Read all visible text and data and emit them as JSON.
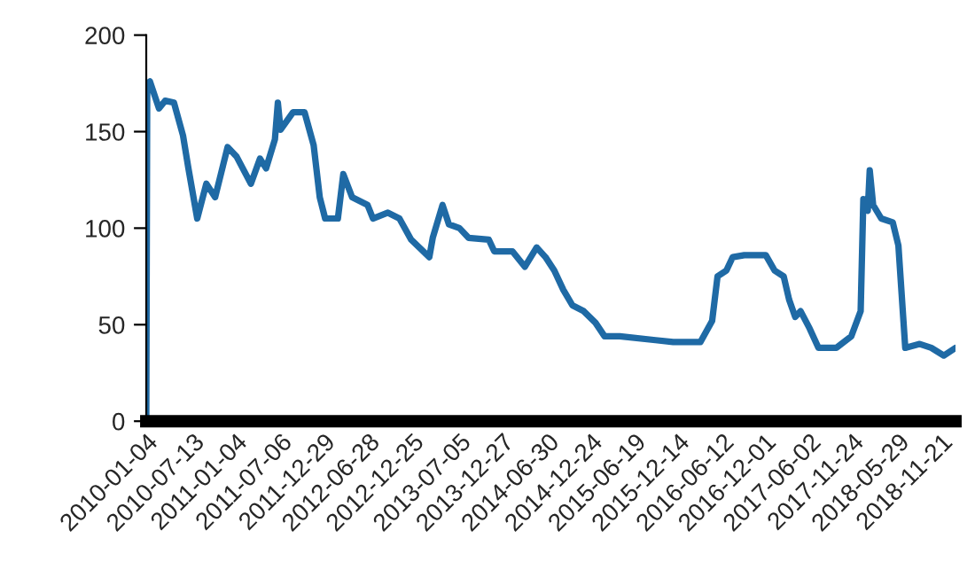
{
  "chart_data": {
    "type": "line",
    "x": [
      "2010-01-04",
      "2010-01-08",
      "2010-01-19",
      "2010-02-25",
      "2010-03-22",
      "2010-04-27",
      "2010-06-03",
      "2010-06-25",
      "2010-07-31",
      "2010-09-06",
      "2010-10-12",
      "2010-12-02",
      "2011-01-08",
      "2011-03-07",
      "2011-04-13",
      "2011-05-08",
      "2011-06-13",
      "2011-06-25",
      "2011-07-06",
      "2011-08-26",
      "2011-10-12",
      "2011-11-18",
      "2011-12-13",
      "2012-01-04",
      "2012-02-25",
      "2012-03-18",
      "2012-04-23",
      "2012-06-25",
      "2012-07-17",
      "2012-09-16",
      "2012-11-02",
      "2012-12-20",
      "2013-03-04",
      "2013-03-18",
      "2013-04-27",
      "2013-05-23",
      "2013-07-05",
      "2013-08-11",
      "2013-11-02",
      "2013-11-24",
      "2014-02-06",
      "2014-03-29",
      "2014-05-16",
      "2014-06-21",
      "2014-07-27",
      "2014-09-02",
      "2014-10-09",
      "2014-11-24",
      "2015-01-11",
      "2015-02-17",
      "2015-04-20",
      "2015-09-13",
      "2015-11-24",
      "2016-03-14",
      "2016-05-01",
      "2016-05-23",
      "2016-06-28",
      "2016-07-24",
      "2016-09-09",
      "2016-12-06",
      "2017-01-11",
      "2017-02-17",
      "2017-03-11",
      "2017-04-05",
      "2017-04-27",
      "2017-06-03",
      "2017-07-09",
      "2017-09-20",
      "2017-11-20",
      "2017-12-28",
      "2018-01-08",
      "2018-01-26",
      "2018-02-03",
      "2018-02-17",
      "2018-03-22",
      "2018-05-08",
      "2018-05-31",
      "2018-06-28",
      "2018-08-26",
      "2018-10-12",
      "2018-12-02",
      "2019-01-19"
    ],
    "series": [
      {
        "color": "#1f6aa5",
        "values": [
          0,
          175,
          176,
          162,
          166,
          165,
          148,
          131,
          105,
          123,
          116,
          142,
          137,
          123,
          136,
          131,
          146,
          165,
          151,
          160,
          160,
          143,
          116,
          105,
          105,
          128,
          116,
          112,
          105,
          108,
          105,
          94,
          85,
          95,
          112,
          102,
          100,
          95,
          94,
          88,
          88,
          80,
          90,
          85,
          78,
          68,
          60,
          57,
          51,
          44,
          44,
          42,
          41,
          41,
          52,
          75,
          78,
          85,
          86,
          86,
          78,
          75,
          63,
          54,
          57,
          48,
          38,
          38,
          44,
          57,
          115,
          109,
          130,
          112,
          105,
          103,
          91,
          38,
          40,
          38,
          34,
          38
        ]
      }
    ],
    "xlim": [
      "2010-01-04",
      "2019-01-19"
    ],
    "xticks": [
      {
        "value": "2010-01-04",
        "label": "2010-01-04"
      },
      {
        "value": "2010-07-13",
        "label": "2010-07-13"
      },
      {
        "value": "2011-01-04",
        "label": "2011-01-04"
      },
      {
        "value": "2011-07-06",
        "label": "2011-07-06"
      },
      {
        "value": "2011-12-29",
        "label": "2011-12-29"
      },
      {
        "value": "2012-06-28",
        "label": "2012-06-28"
      },
      {
        "value": "2012-12-25",
        "label": "2012-12-25"
      },
      {
        "value": "2013-07-05",
        "label": "2013-07-05"
      },
      {
        "value": "2013-12-27",
        "label": "2013-12-27"
      },
      {
        "value": "2014-06-30",
        "label": "2014-06-30"
      },
      {
        "value": "2014-12-24",
        "label": "2014-12-24"
      },
      {
        "value": "2015-06-19",
        "label": "2015-06-19"
      },
      {
        "value": "2015-12-14",
        "label": "2015-12-14"
      },
      {
        "value": "2016-06-12",
        "label": "2016-06-12"
      },
      {
        "value": "2016-12-01",
        "label": "2016-12-01"
      },
      {
        "value": "2017-06-02",
        "label": "2017-06-02"
      },
      {
        "value": "2017-11-24",
        "label": "2017-11-24"
      },
      {
        "value": "2018-05-29",
        "label": "2018-05-29"
      },
      {
        "value": "2018-11-21",
        "label": "2018-11-21"
      }
    ],
    "ylim": [
      0,
      200
    ],
    "yticks": [
      0,
      50,
      100,
      150,
      200
    ],
    "grid": false,
    "legend": false,
    "marker": "none",
    "line_style": "solid"
  }
}
